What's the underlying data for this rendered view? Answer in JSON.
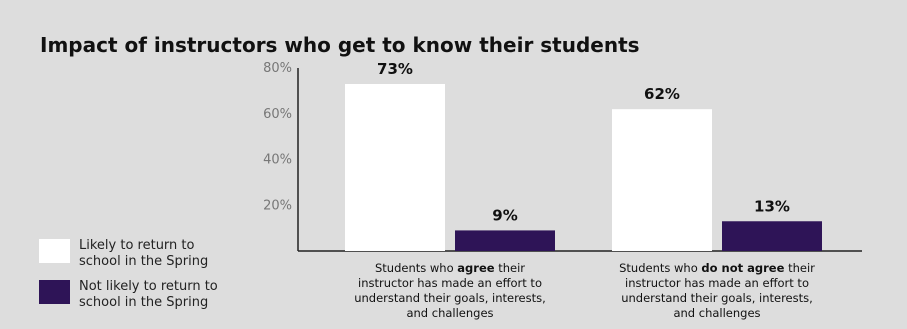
{
  "chart_data": {
    "type": "bar",
    "title": "Impact of instructors who get to know their students",
    "xlabel": "",
    "ylabel": "",
    "ylim": [
      0,
      80
    ],
    "yticks": [
      "20%",
      "40%",
      "60%",
      "80%"
    ],
    "grid": false,
    "legend_placement": "bottom-left",
    "categories": [
      {
        "lines": [
          [
            {
              "t": "Students who ",
              "b": false
            },
            {
              "t": "agree",
              "b": true
            },
            {
              "t": " their",
              "b": false
            }
          ],
          [
            {
              "t": "instructor has made an effort to",
              "b": false
            }
          ],
          [
            {
              "t": "understand their goals, interests,",
              "b": false
            }
          ],
          [
            {
              "t": "and challenges",
              "b": false
            }
          ]
        ]
      },
      {
        "lines": [
          [
            {
              "t": "Students who ",
              "b": false
            },
            {
              "t": "do not agree",
              "b": true
            },
            {
              "t": " their",
              "b": false
            }
          ],
          [
            {
              "t": "instructor has made an effort to",
              "b": false
            }
          ],
          [
            {
              "t": "understand their goals, interests,",
              "b": false
            }
          ],
          [
            {
              "t": "and challenges",
              "b": false
            }
          ]
        ]
      }
    ],
    "series": [
      {
        "name": "Likely to return to school in the Spring",
        "legend_lines": [
          "Likely to return to",
          "school in the Spring"
        ],
        "color": "#ffffff",
        "values": [
          73,
          62
        ],
        "labels": [
          "73%",
          "62%"
        ]
      },
      {
        "name": "Not likely to return to school in the Spring",
        "legend_lines": [
          "Not likely to return to",
          "school in the Spring"
        ],
        "color": "#2e1457",
        "values": [
          9,
          13
        ],
        "labels": [
          "9%",
          "13%"
        ]
      }
    ]
  }
}
